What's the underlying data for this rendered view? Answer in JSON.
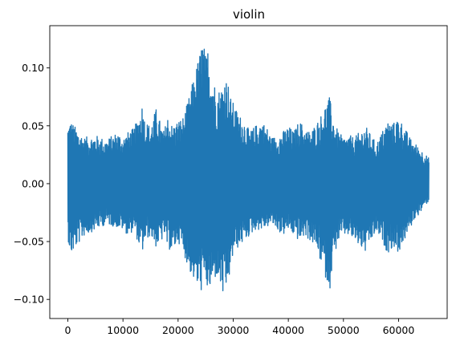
{
  "chart_data": {
    "type": "line",
    "title": "violin",
    "xlabel": "",
    "ylabel": "",
    "xlim": [
      -3280,
      68820
    ],
    "ylim": [
      -0.1165,
      0.1365
    ],
    "x_ticks": [
      0,
      10000,
      20000,
      30000,
      40000,
      50000,
      60000
    ],
    "x_tick_labels": [
      "0",
      "10000",
      "20000",
      "30000",
      "40000",
      "50000",
      "60000"
    ],
    "y_ticks": [
      -0.1,
      -0.05,
      0.0,
      0.05,
      0.1
    ],
    "y_tick_labels": [
      "−0.10",
      "−0.05",
      "0.00",
      "0.05",
      "0.10"
    ],
    "grid": false,
    "legend": "none",
    "series": [
      {
        "color": "#1f77b4",
        "envelope_x": [
          0,
          500,
          1500,
          3000,
          5000,
          7000,
          9000,
          10000,
          11000,
          12000,
          13000,
          13500,
          14000,
          15000,
          16000,
          17000,
          17500,
          18000,
          19000,
          20000,
          21000,
          22000,
          23000,
          24000,
          24500,
          25000,
          25500,
          26000,
          27000,
          28000,
          28500,
          29000,
          29500,
          30000,
          31000,
          32000,
          33000,
          34000,
          35000,
          36000,
          37000,
          38000,
          39000,
          40000,
          41000,
          42000,
          43000,
          44000,
          45000,
          46000,
          47000,
          47500,
          48000,
          49000,
          50000,
          51000,
          52000,
          53000,
          54000,
          55000,
          56000,
          57000,
          58000,
          59000,
          60000,
          61000,
          62000,
          63000,
          64000,
          65000,
          65500
        ],
        "upper": [
          0.052,
          0.055,
          0.048,
          0.04,
          0.042,
          0.038,
          0.045,
          0.04,
          0.045,
          0.048,
          0.06,
          0.07,
          0.055,
          0.05,
          0.065,
          0.05,
          0.045,
          0.06,
          0.05,
          0.055,
          0.058,
          0.075,
          0.095,
          0.115,
          0.128,
          0.11,
          0.12,
          0.1,
          0.08,
          0.085,
          0.095,
          0.09,
          0.075,
          0.07,
          0.06,
          0.055,
          0.045,
          0.05,
          0.055,
          0.05,
          0.04,
          0.042,
          0.045,
          0.05,
          0.045,
          0.055,
          0.048,
          0.045,
          0.052,
          0.06,
          0.072,
          0.075,
          0.06,
          0.045,
          0.04,
          0.042,
          0.04,
          0.045,
          0.05,
          0.042,
          0.035,
          0.045,
          0.055,
          0.052,
          0.058,
          0.05,
          0.04,
          0.035,
          0.03,
          0.025,
          0.022
        ],
        "lower": [
          -0.047,
          -0.063,
          -0.055,
          -0.045,
          -0.04,
          -0.035,
          -0.038,
          -0.04,
          -0.045,
          -0.04,
          -0.055,
          -0.06,
          -0.05,
          -0.045,
          -0.055,
          -0.05,
          -0.045,
          -0.055,
          -0.06,
          -0.05,
          -0.06,
          -0.075,
          -0.085,
          -0.095,
          -0.09,
          -0.085,
          -0.097,
          -0.09,
          -0.08,
          -0.095,
          -0.105,
          -0.085,
          -0.08,
          -0.06,
          -0.055,
          -0.05,
          -0.045,
          -0.04,
          -0.04,
          -0.038,
          -0.035,
          -0.04,
          -0.045,
          -0.04,
          -0.045,
          -0.05,
          -0.045,
          -0.05,
          -0.055,
          -0.07,
          -0.085,
          -0.093,
          -0.07,
          -0.05,
          -0.045,
          -0.045,
          -0.05,
          -0.055,
          -0.06,
          -0.05,
          -0.042,
          -0.05,
          -0.06,
          -0.055,
          -0.06,
          -0.05,
          -0.04,
          -0.03,
          -0.025,
          -0.018,
          -0.015
        ]
      }
    ]
  }
}
